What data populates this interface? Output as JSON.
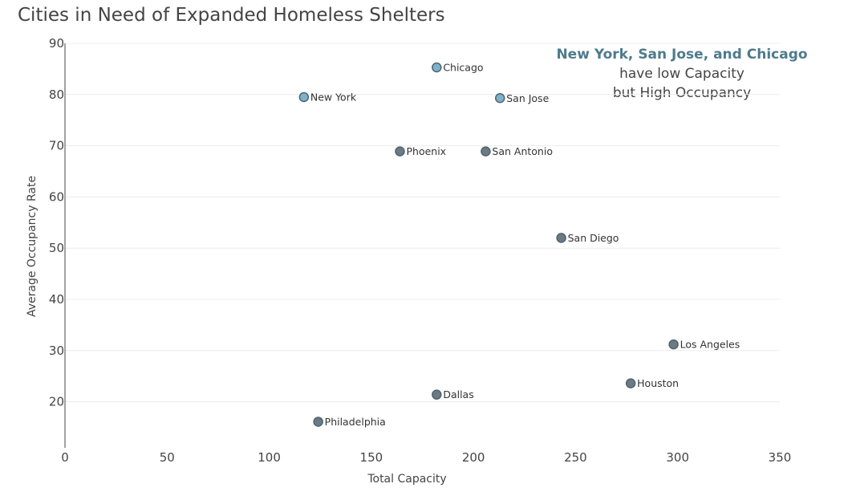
{
  "chart_data": {
    "type": "scatter",
    "title": "Cities in Need of Expanded Homeless Shelters",
    "xlabel": "Total Capacity",
    "ylabel": "Average Occupancy Rate",
    "xlim": [
      0,
      350
    ],
    "ylim": [
      11,
      90
    ],
    "x_ticks": [
      0,
      50,
      100,
      150,
      200,
      250,
      300,
      350
    ],
    "y_ticks": [
      20,
      30,
      40,
      50,
      60,
      70,
      80,
      90
    ],
    "grid": "horizontal",
    "highlight_color": "#7fb2c9",
    "default_color": "#6b7b82",
    "marker_outline": "#4e6470",
    "points": [
      {
        "name": "Chicago",
        "x": 182,
        "y": 85.3,
        "highlight": true
      },
      {
        "name": "New York",
        "x": 117,
        "y": 79.5,
        "highlight": true
      },
      {
        "name": "San Jose",
        "x": 213,
        "y": 79.3,
        "highlight": true
      },
      {
        "name": "Phoenix",
        "x": 164,
        "y": 68.9,
        "highlight": false
      },
      {
        "name": "San Antonio",
        "x": 206,
        "y": 68.9,
        "highlight": false
      },
      {
        "name": "San Diego",
        "x": 243,
        "y": 52.0,
        "highlight": false
      },
      {
        "name": "Los Angeles",
        "x": 298,
        "y": 31.2,
        "highlight": false
      },
      {
        "name": "Houston",
        "x": 277,
        "y": 23.6,
        "highlight": false
      },
      {
        "name": "Dallas",
        "x": 182,
        "y": 21.4,
        "highlight": false
      },
      {
        "name": "Philadelphia",
        "x": 124,
        "y": 16.1,
        "highlight": false
      }
    ],
    "annotation": {
      "highlight": "New York, San Jose, and Chicago",
      "line2": "have low Capacity",
      "line3": "but High Occupancy"
    }
  }
}
